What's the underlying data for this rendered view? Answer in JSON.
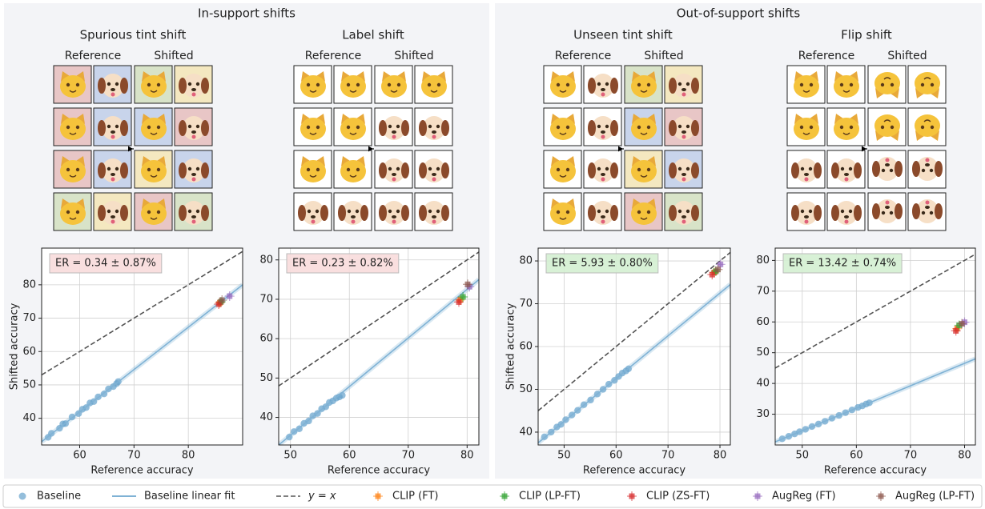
{
  "groups": [
    "In-support shifts",
    "Out-of-support shifts"
  ],
  "panels": [
    {
      "title": "Spurious tint shift",
      "reference": "Reference",
      "shifted": "Shifted"
    },
    {
      "title": "Label shift",
      "reference": "Reference",
      "shifted": "Shifted"
    },
    {
      "title": "Unseen tint shift",
      "reference": "Reference",
      "shifted": "Shifted"
    },
    {
      "title": "Flip shift",
      "reference": "Reference",
      "shifted": "Shifted"
    }
  ],
  "chart_data": [
    {
      "type": "scatter",
      "annotation": "ER = 0.34 ± 0.87%",
      "annotation_color": "#f8dcdc",
      "xlabel": "Reference accuracy",
      "ylabel": "Shifted accuracy",
      "xlim": [
        53,
        90
      ],
      "ylim": [
        32,
        91
      ],
      "xticks": [
        60,
        70,
        80
      ],
      "yticks": [
        40,
        50,
        60,
        70,
        80
      ],
      "grid": true,
      "series": [
        {
          "name": "Baseline",
          "style": "points",
          "color": "#5b9bc8",
          "x": [
            54.2,
            54.8,
            56.3,
            56.9,
            57.4,
            58.6,
            59.8,
            60.5,
            61.2,
            61.9,
            62.6,
            63.4,
            64.5,
            65.3,
            66.2,
            66.8,
            67.1
          ],
          "values": [
            34.3,
            35.5,
            37.0,
            38.3,
            38.4,
            40.4,
            41.4,
            42.7,
            43.2,
            44.6,
            45.0,
            46.4,
            47.3,
            48.8,
            49.5,
            50.4,
            51.0
          ]
        },
        {
          "name": "Baseline linear fit",
          "style": "line",
          "color": "#7fb2d5",
          "x": [
            53,
            90
          ],
          "values": [
            33,
            80
          ]
        },
        {
          "name": "y = x",
          "style": "dashed",
          "color": "#555555",
          "x": [
            53,
            90
          ],
          "values": [
            53,
            90
          ]
        },
        {
          "name": "CLIP (FT)",
          "style": "cross",
          "color": "#ff7f0e",
          "x": [
            85.8
          ],
          "values": [
            74.6
          ]
        },
        {
          "name": "CLIP (LP-FT)",
          "style": "cross",
          "color": "#2ca02c",
          "x": [
            86.0
          ],
          "values": [
            74.9
          ]
        },
        {
          "name": "CLIP (ZS-FT)",
          "style": "cross",
          "color": "#d62728",
          "x": [
            85.6
          ],
          "values": [
            74.2
          ]
        },
        {
          "name": "AugReg (FT)",
          "style": "cross",
          "color": "#9467bd",
          "x": [
            87.6
          ],
          "values": [
            76.6
          ]
        },
        {
          "name": "AugReg (LP-FT)",
          "style": "cross",
          "color": "#8c564b",
          "x": [
            86.2
          ],
          "values": [
            75.4
          ]
        }
      ]
    },
    {
      "type": "scatter",
      "annotation": "ER = 0.23 ± 0.82%",
      "annotation_color": "#f8dcdc",
      "xlabel": "Reference accuracy",
      "xlim": [
        48,
        82
      ],
      "ylim": [
        33,
        83
      ],
      "xticks": [
        50,
        60,
        70,
        80
      ],
      "yticks": [
        40,
        50,
        60,
        70,
        80
      ],
      "grid": true,
      "series": [
        {
          "name": "Baseline",
          "style": "points",
          "color": "#5b9bc8",
          "x": [
            49.8,
            50.6,
            51.5,
            52.3,
            53.1,
            53.8,
            54.6,
            55.3,
            56.0,
            56.6,
            57.2,
            57.8,
            58.3,
            58.8
          ],
          "values": [
            35.0,
            36.4,
            37.1,
            38.5,
            39.1,
            40.4,
            41.0,
            42.2,
            42.7,
            43.8,
            44.2,
            44.9,
            45.2,
            45.6
          ]
        },
        {
          "name": "Baseline linear fit",
          "style": "line",
          "color": "#7fb2d5",
          "x": [
            48,
            82
          ],
          "values": [
            33,
            75
          ]
        },
        {
          "name": "y = x",
          "style": "dashed",
          "color": "#555555",
          "x": [
            48,
            82
          ],
          "values": [
            48,
            82
          ]
        },
        {
          "name": "CLIP (FT)",
          "style": "cross",
          "color": "#ff7f0e",
          "x": [
            78.8
          ],
          "values": [
            69.8
          ]
        },
        {
          "name": "CLIP (LP-FT)",
          "style": "cross",
          "color": "#2ca02c",
          "x": [
            79.3
          ],
          "values": [
            70.6
          ]
        },
        {
          "name": "CLIP (ZS-FT)",
          "style": "cross",
          "color": "#d62728",
          "x": [
            78.6
          ],
          "values": [
            69.3
          ]
        },
        {
          "name": "AugReg (FT)",
          "style": "cross",
          "color": "#9467bd",
          "x": [
            80.4
          ],
          "values": [
            73.2
          ]
        },
        {
          "name": "AugReg (LP-FT)",
          "style": "cross",
          "color": "#8c564b",
          "x": [
            80.1
          ],
          "values": [
            73.8
          ]
        }
      ]
    },
    {
      "type": "scatter",
      "annotation": "ER = 5.93 ± 0.80%",
      "annotation_color": "#d4efd2",
      "xlabel": "Reference accuracy",
      "ylabel": "Shifted accuracy",
      "xlim": [
        45,
        82
      ],
      "ylim": [
        37,
        83
      ],
      "xticks": [
        50,
        60,
        70,
        80
      ],
      "yticks": [
        40,
        50,
        60,
        70,
        80
      ],
      "grid": true,
      "series": [
        {
          "name": "Baseline",
          "style": "points",
          "color": "#5b9bc8",
          "x": [
            46.2,
            47.5,
            48.6,
            49.4,
            50.3,
            51.5,
            52.6,
            53.8,
            55.1,
            56.4,
            57.5,
            58.6,
            59.7,
            60.5,
            61.2,
            61.9,
            62.4
          ],
          "values": [
            38.9,
            40.0,
            41.2,
            41.8,
            42.9,
            44.0,
            45.1,
            46.4,
            47.5,
            48.9,
            50.0,
            51.2,
            52.1,
            53.0,
            53.8,
            54.3,
            54.8
          ]
        },
        {
          "name": "Baseline linear fit",
          "style": "line",
          "color": "#7fb2d5",
          "x": [
            45,
            82
          ],
          "values": [
            37.5,
            74.5
          ]
        },
        {
          "name": "y = x",
          "style": "dashed",
          "color": "#555555",
          "x": [
            45,
            82
          ],
          "values": [
            45,
            82
          ]
        },
        {
          "name": "CLIP (FT)",
          "style": "cross",
          "color": "#ff7f0e",
          "x": [
            78.9
          ],
          "values": [
            77.3
          ]
        },
        {
          "name": "CLIP (LP-FT)",
          "style": "cross",
          "color": "#2ca02c",
          "x": [
            79.2
          ],
          "values": [
            77.6
          ]
        },
        {
          "name": "CLIP (ZS-FT)",
          "style": "cross",
          "color": "#d62728",
          "x": [
            78.5
          ],
          "values": [
            76.8
          ]
        },
        {
          "name": "AugReg (FT)",
          "style": "cross",
          "color": "#9467bd",
          "x": [
            80.1
          ],
          "values": [
            79.2
          ]
        },
        {
          "name": "AugReg (LP-FT)",
          "style": "cross",
          "color": "#8c564b",
          "x": [
            79.6
          ],
          "values": [
            78.0
          ]
        }
      ]
    },
    {
      "type": "scatter",
      "annotation": "ER = 13.42 ± 0.74%",
      "annotation_color": "#d4efd2",
      "xlabel": "Reference accuracy",
      "xlim": [
        45,
        82
      ],
      "ylim": [
        20,
        84
      ],
      "xticks": [
        50,
        60,
        70,
        80
      ],
      "yticks": [
        30,
        40,
        50,
        60,
        70,
        80
      ],
      "grid": true,
      "series": [
        {
          "name": "Baseline",
          "style": "points",
          "color": "#5b9bc8",
          "x": [
            46.3,
            47.5,
            48.6,
            49.5,
            50.6,
            51.8,
            53.0,
            54.2,
            55.5,
            56.8,
            58.0,
            59.2,
            60.3,
            61.1,
            61.8,
            62.4
          ],
          "values": [
            22.0,
            22.8,
            23.6,
            24.3,
            25.1,
            26.0,
            26.8,
            27.7,
            28.7,
            29.6,
            30.5,
            31.4,
            32.2,
            32.7,
            33.3,
            33.7
          ]
        },
        {
          "name": "Baseline linear fit",
          "style": "line",
          "color": "#7fb2d5",
          "x": [
            45,
            82
          ],
          "values": [
            21,
            48
          ]
        },
        {
          "name": "y = x",
          "style": "dashed",
          "color": "#555555",
          "x": [
            45,
            82
          ],
          "values": [
            45,
            82
          ]
        },
        {
          "name": "CLIP (FT)",
          "style": "cross",
          "color": "#ff7f0e",
          "x": [
            78.6
          ],
          "values": [
            57.8
          ]
        },
        {
          "name": "CLIP (LP-FT)",
          "style": "cross",
          "color": "#2ca02c",
          "x": [
            79.0
          ],
          "values": [
            58.9
          ]
        },
        {
          "name": "CLIP (ZS-FT)",
          "style": "cross",
          "color": "#d62728",
          "x": [
            78.4
          ],
          "values": [
            57.1
          ]
        },
        {
          "name": "AugReg (FT)",
          "style": "cross",
          "color": "#9467bd",
          "x": [
            80.0
          ],
          "values": [
            59.9
          ]
        },
        {
          "name": "AugReg (LP-FT)",
          "style": "cross",
          "color": "#8c564b",
          "x": [
            79.5
          ],
          "values": [
            59.4
          ]
        }
      ]
    }
  ]
}
